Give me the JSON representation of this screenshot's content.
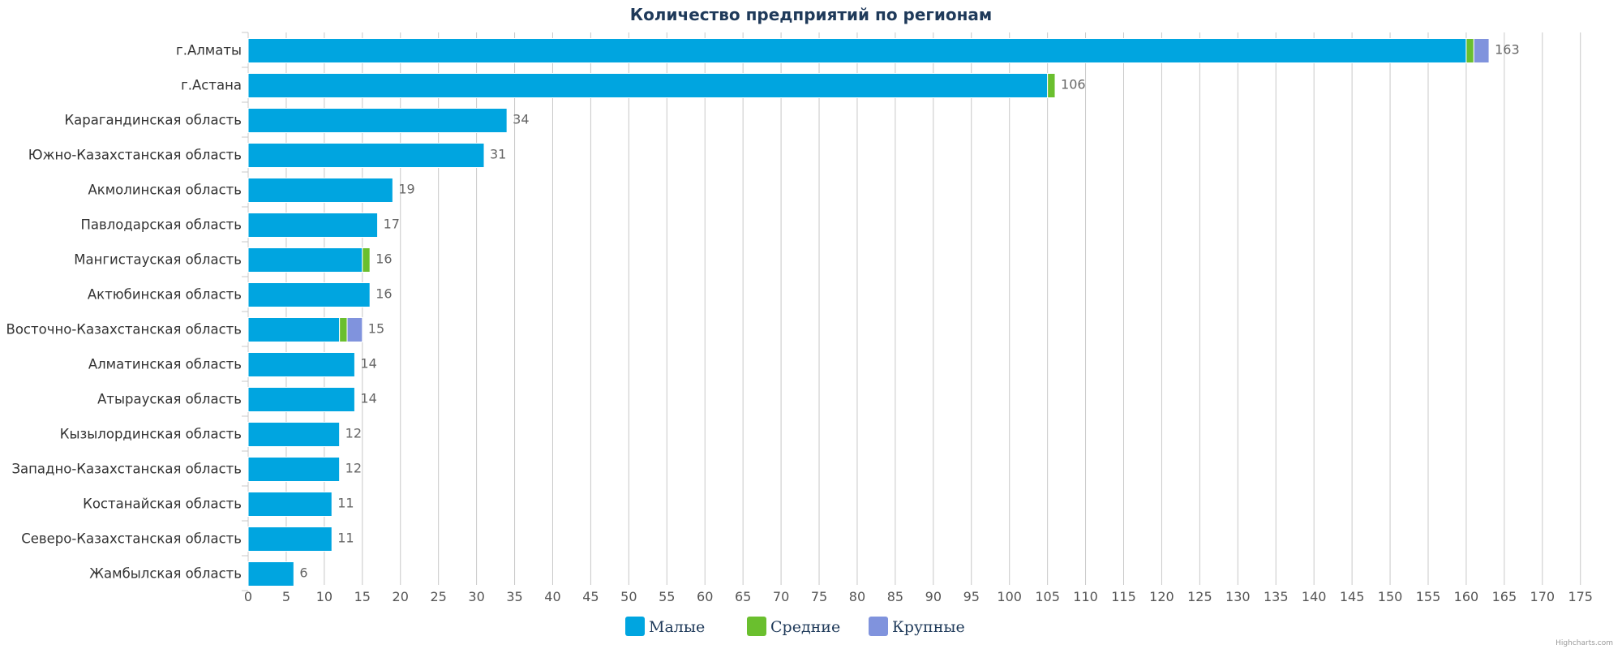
{
  "chart_data": {
    "type": "bar",
    "orientation": "horizontal",
    "stacked": true,
    "title": "Количество предприятий по регионам",
    "categories": [
      "г.Алматы",
      "г.Астана",
      "Карагандинская область",
      "Южно-Казахстанская область",
      "Акмолинская область",
      "Павлодарская область",
      "Мангистауская область",
      "Актюбинская область",
      "Восточно-Казахстанская область",
      "Алматинская область",
      "Атырауская область",
      "Кызылординская область",
      "Западно-Казахстанская область",
      "Костанайская область",
      "Северо-Казахстанская область",
      "Жамбылская область"
    ],
    "series": [
      {
        "name": "Малые",
        "color": "#00a5e0",
        "values": [
          160,
          105,
          34,
          31,
          19,
          17,
          15,
          16,
          12,
          14,
          14,
          12,
          12,
          11,
          11,
          6
        ]
      },
      {
        "name": "Средние",
        "color": "#6abf2e",
        "values": [
          1,
          1,
          0,
          0,
          0,
          0,
          1,
          0,
          1,
          0,
          0,
          0,
          0,
          0,
          0,
          0
        ]
      },
      {
        "name": "Крупные",
        "color": "#8093dd",
        "values": [
          2,
          0,
          0,
          0,
          0,
          0,
          0,
          0,
          2,
          0,
          0,
          0,
          0,
          0,
          0,
          0
        ]
      }
    ],
    "totals": [
      163,
      106,
      34,
      31,
      19,
      17,
      16,
      16,
      15,
      14,
      14,
      12,
      12,
      11,
      11,
      6
    ],
    "xlim": [
      0,
      175
    ],
    "tick_step": 5,
    "grid": true,
    "legend_position": "bottom-center",
    "credit": "Highcharts.com"
  }
}
